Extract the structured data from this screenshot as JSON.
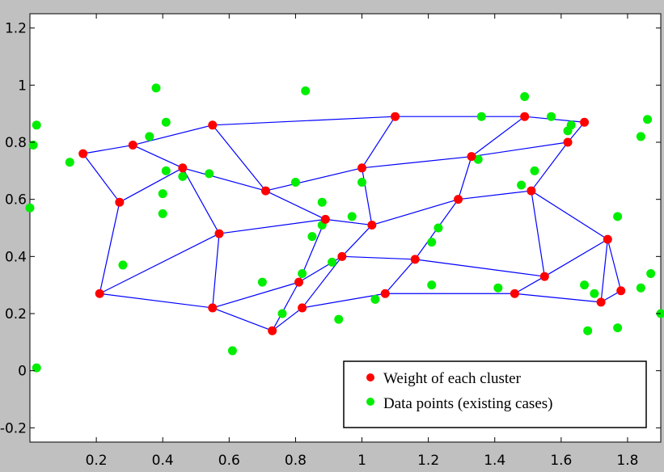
{
  "chart_data": {
    "type": "scatter",
    "title": "",
    "xlabel": "",
    "ylabel": "",
    "xlim": [
      0,
      1.9
    ],
    "ylim": [
      -0.25,
      1.25
    ],
    "grid": false,
    "legend_position": "bottom-right",
    "x_ticks": [
      0.2,
      0.4,
      0.6,
      0.8,
      1,
      1.2,
      1.4,
      1.6,
      1.8
    ],
    "x_tick_labels": [
      "0.2",
      "0.4",
      "0.6",
      "0.8",
      "1",
      "1.2",
      "1.4",
      "1.6",
      "1.8"
    ],
    "y_ticks": [
      -0.2,
      0,
      0.2,
      0.4,
      0.6,
      0.8,
      1,
      1.2
    ],
    "y_tick_labels": [
      "-0.2",
      "0",
      "0.2",
      "0.4",
      "0.6",
      "0.8",
      "1",
      "1.2"
    ],
    "legend": [
      {
        "label": "Weight of each cluster",
        "color": "#ff0000"
      },
      {
        "label": "Data points (existing cases)",
        "color": "#00ee00"
      }
    ],
    "colors": {
      "weights": "#ff0000",
      "data": "#00ee00",
      "edges": "#0000ff"
    },
    "weights": [
      [
        0.16,
        0.76
      ],
      [
        0.31,
        0.79
      ],
      [
        0.55,
        0.86
      ],
      [
        1.1,
        0.89
      ],
      [
        1.49,
        0.89
      ],
      [
        1.67,
        0.87
      ],
      [
        0.27,
        0.59
      ],
      [
        0.46,
        0.71
      ],
      [
        0.71,
        0.63
      ],
      [
        1.0,
        0.71
      ],
      [
        1.33,
        0.75
      ],
      [
        1.62,
        0.8
      ],
      [
        0.21,
        0.27
      ],
      [
        0.57,
        0.48
      ],
      [
        0.89,
        0.53
      ],
      [
        1.03,
        0.51
      ],
      [
        1.29,
        0.6
      ],
      [
        1.51,
        0.63
      ],
      [
        0.55,
        0.22
      ],
      [
        0.81,
        0.31
      ],
      [
        0.94,
        0.4
      ],
      [
        1.16,
        0.39
      ],
      [
        1.55,
        0.33
      ],
      [
        1.74,
        0.46
      ],
      [
        0.73,
        0.14
      ],
      [
        0.82,
        0.22
      ],
      [
        1.07,
        0.27
      ],
      [
        1.46,
        0.27
      ],
      [
        1.72,
        0.24
      ],
      [
        1.78,
        0.28
      ]
    ],
    "edges": [
      [
        0,
        1
      ],
      [
        1,
        2
      ],
      [
        2,
        3
      ],
      [
        3,
        4
      ],
      [
        4,
        5
      ],
      [
        6,
        7
      ],
      [
        7,
        8
      ],
      [
        8,
        9
      ],
      [
        9,
        10
      ],
      [
        10,
        11
      ],
      [
        12,
        13
      ],
      [
        13,
        14
      ],
      [
        14,
        15
      ],
      [
        15,
        16
      ],
      [
        16,
        17
      ],
      [
        18,
        19
      ],
      [
        19,
        20
      ],
      [
        20,
        21
      ],
      [
        21,
        22
      ],
      [
        22,
        23
      ],
      [
        24,
        25
      ],
      [
        25,
        26
      ],
      [
        26,
        27
      ],
      [
        27,
        28
      ],
      [
        28,
        29
      ],
      [
        0,
        6
      ],
      [
        6,
        12
      ],
      [
        1,
        7
      ],
      [
        7,
        13
      ],
      [
        13,
        18
      ],
      [
        2,
        8
      ],
      [
        8,
        14
      ],
      [
        14,
        19
      ],
      [
        19,
        24
      ],
      [
        3,
        9
      ],
      [
        9,
        15
      ],
      [
        15,
        20
      ],
      [
        20,
        25
      ],
      [
        4,
        10
      ],
      [
        10,
        16
      ],
      [
        16,
        21
      ],
      [
        21,
        26
      ],
      [
        5,
        11
      ],
      [
        11,
        17
      ],
      [
        17,
        22
      ],
      [
        22,
        27
      ],
      [
        17,
        23
      ],
      [
        23,
        28
      ],
      [
        23,
        29
      ],
      [
        12,
        18
      ],
      [
        18,
        24
      ]
    ],
    "data_points": [
      [
        0.01,
        0.79
      ],
      [
        0.02,
        0.86
      ],
      [
        0.0,
        0.57
      ],
      [
        0.02,
        0.01
      ],
      [
        0.12,
        0.73
      ],
      [
        0.38,
        0.99
      ],
      [
        0.36,
        0.82
      ],
      [
        0.41,
        0.87
      ],
      [
        0.4,
        0.62
      ],
      [
        0.4,
        0.55
      ],
      [
        0.41,
        0.7
      ],
      [
        0.46,
        0.68
      ],
      [
        0.54,
        0.69
      ],
      [
        0.28,
        0.37
      ],
      [
        0.61,
        0.07
      ],
      [
        0.7,
        0.31
      ],
      [
        0.83,
        0.98
      ],
      [
        0.8,
        0.66
      ],
      [
        0.82,
        0.34
      ],
      [
        0.85,
        0.47
      ],
      [
        0.88,
        0.59
      ],
      [
        0.88,
        0.51
      ],
      [
        0.91,
        0.38
      ],
      [
        0.93,
        0.18
      ],
      [
        0.97,
        0.54
      ],
      [
        1.0,
        0.66
      ],
      [
        1.04,
        0.25
      ],
      [
        1.21,
        0.45
      ],
      [
        1.23,
        0.5
      ],
      [
        1.21,
        0.3
      ],
      [
        1.36,
        0.89
      ],
      [
        1.35,
        0.74
      ],
      [
        1.41,
        0.29
      ],
      [
        1.48,
        0.65
      ],
      [
        1.49,
        0.96
      ],
      [
        1.52,
        0.7
      ],
      [
        1.57,
        0.89
      ],
      [
        1.62,
        0.84
      ],
      [
        1.63,
        0.86
      ],
      [
        1.67,
        0.3
      ],
      [
        1.68,
        0.14
      ],
      [
        1.7,
        0.27
      ],
      [
        1.77,
        0.54
      ],
      [
        1.77,
        0.15
      ],
      [
        1.84,
        0.29
      ],
      [
        1.84,
        0.82
      ],
      [
        1.86,
        0.88
      ],
      [
        1.87,
        0.34
      ],
      [
        1.9,
        0.2
      ],
      [
        0.76,
        0.2
      ]
    ]
  }
}
